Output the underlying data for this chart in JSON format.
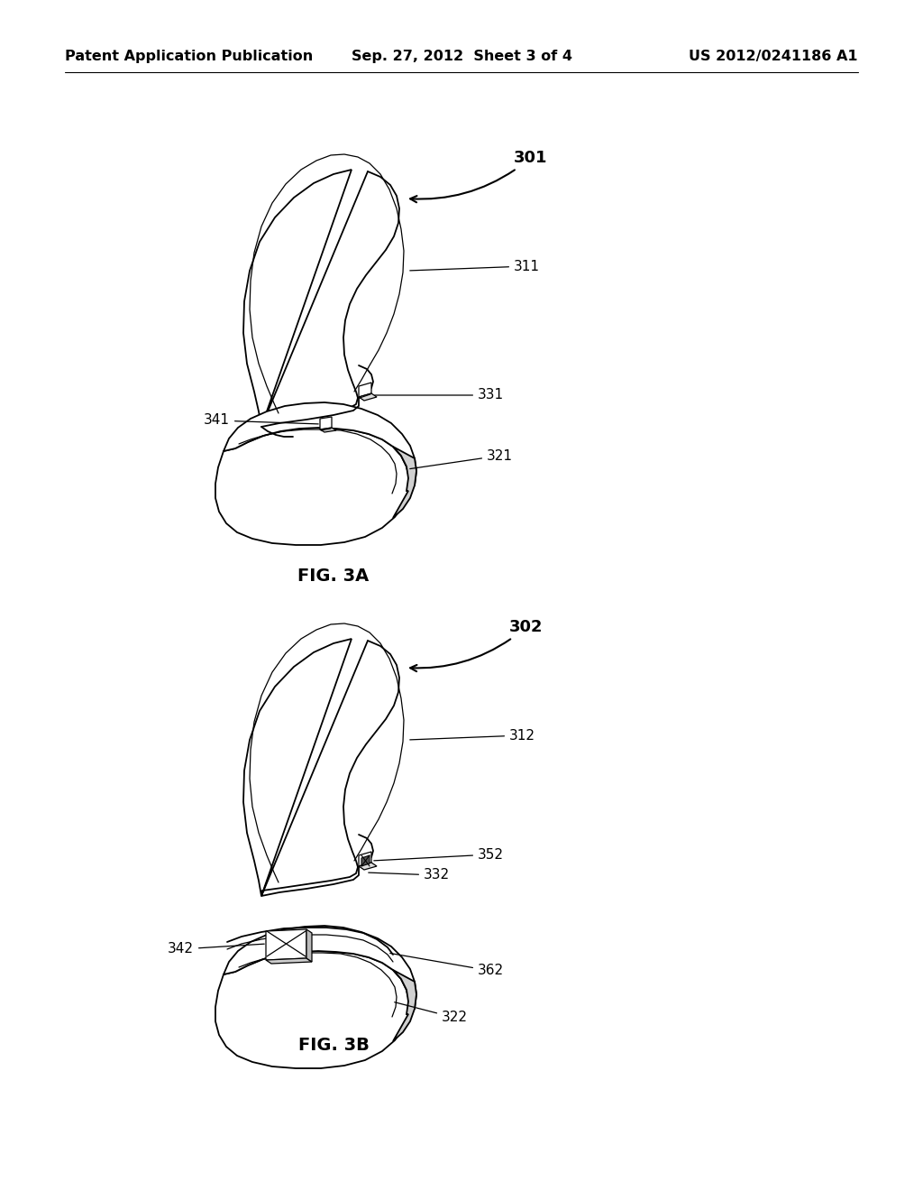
{
  "background_color": "#ffffff",
  "header": {
    "left": "Patent Application Publication",
    "center": "Sep. 27, 2012  Sheet 3 of 4",
    "right": "US 2012/0241186 A1",
    "font_size": 11.5
  },
  "fig3a_label": "FIG. 3A",
  "fig3b_label": "FIG. 3B",
  "ann_fs": 11,
  "ref_fs": 13,
  "lw_main": 1.3,
  "lw_thin": 0.9
}
